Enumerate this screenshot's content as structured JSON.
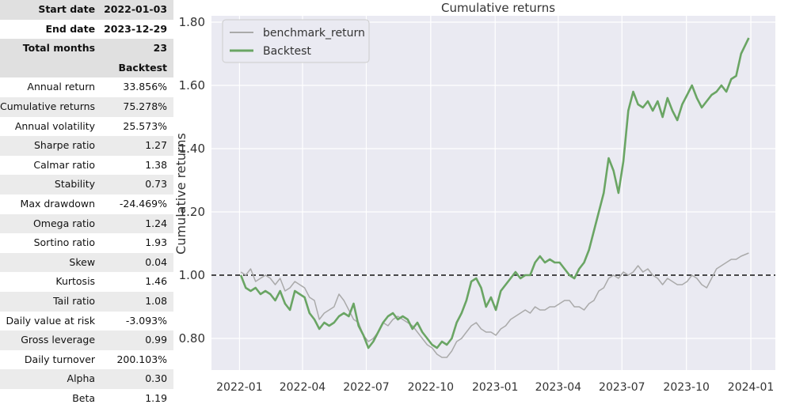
{
  "summary": {
    "rows": [
      {
        "label": "Start date",
        "value": "2022-01-03"
      },
      {
        "label": "End date",
        "value": "2023-12-29"
      },
      {
        "label": "Total months",
        "value": "23"
      }
    ],
    "column_header": "Backtest"
  },
  "metrics": [
    {
      "label": "Annual return",
      "value": "33.856%"
    },
    {
      "label": "Cumulative returns",
      "value": "75.278%"
    },
    {
      "label": "Annual volatility",
      "value": "25.573%"
    },
    {
      "label": "Sharpe ratio",
      "value": "1.27"
    },
    {
      "label": "Calmar ratio",
      "value": "1.38"
    },
    {
      "label": "Stability",
      "value": "0.73"
    },
    {
      "label": "Max drawdown",
      "value": "-24.469%"
    },
    {
      "label": "Omega ratio",
      "value": "1.24"
    },
    {
      "label": "Sortino ratio",
      "value": "1.93"
    },
    {
      "label": "Skew",
      "value": "0.04"
    },
    {
      "label": "Kurtosis",
      "value": "1.46"
    },
    {
      "label": "Tail ratio",
      "value": "1.08"
    },
    {
      "label": "Daily value at risk",
      "value": "-3.093%"
    },
    {
      "label": "Gross leverage",
      "value": "0.99"
    },
    {
      "label": "Daily turnover",
      "value": "200.103%"
    },
    {
      "label": "Alpha",
      "value": "0.30"
    },
    {
      "label": "Beta",
      "value": "1.19"
    }
  ],
  "chart_data": {
    "type": "line",
    "title": "Cumulative returns",
    "ylabel": "Cumulative returns",
    "xlabel": "",
    "x_ticks": [
      "2022-01",
      "2022-04",
      "2022-07",
      "2022-10",
      "2023-01",
      "2023-04",
      "2023-07",
      "2023-10",
      "2024-01"
    ],
    "y_ticks": [
      "0.80",
      "1.00",
      "1.20",
      "1.40",
      "1.60",
      "1.80"
    ],
    "xlim": [
      "2021-11-22",
      "2024-02-05"
    ],
    "ylim": [
      0.7,
      1.82
    ],
    "reference_line": 1.0,
    "grid": true,
    "legend_position": "top-left",
    "background": "#eaeaf2",
    "series": [
      {
        "name": "benchmark_return",
        "color": "#aaaaaa",
        "points": [
          [
            "2022-01-03",
            1.01
          ],
          [
            "2022-01-10",
            1.0
          ],
          [
            "2022-01-17",
            1.02
          ],
          [
            "2022-01-24",
            0.98
          ],
          [
            "2022-01-31",
            0.99
          ],
          [
            "2022-02-07",
            1.0
          ],
          [
            "2022-02-14",
            0.99
          ],
          [
            "2022-02-21",
            0.97
          ],
          [
            "2022-02-28",
            0.99
          ],
          [
            "2022-03-07",
            0.95
          ],
          [
            "2022-03-14",
            0.96
          ],
          [
            "2022-03-21",
            0.98
          ],
          [
            "2022-03-28",
            0.97
          ],
          [
            "2022-04-04",
            0.96
          ],
          [
            "2022-04-11",
            0.93
          ],
          [
            "2022-04-18",
            0.92
          ],
          [
            "2022-04-25",
            0.86
          ],
          [
            "2022-05-02",
            0.88
          ],
          [
            "2022-05-09",
            0.89
          ],
          [
            "2022-05-16",
            0.9
          ],
          [
            "2022-05-23",
            0.94
          ],
          [
            "2022-05-30",
            0.92
          ],
          [
            "2022-06-06",
            0.89
          ],
          [
            "2022-06-13",
            0.86
          ],
          [
            "2022-06-20",
            0.85
          ],
          [
            "2022-06-27",
            0.81
          ],
          [
            "2022-07-04",
            0.79
          ],
          [
            "2022-07-11",
            0.8
          ],
          [
            "2022-07-18",
            0.82
          ],
          [
            "2022-07-25",
            0.85
          ],
          [
            "2022-08-01",
            0.84
          ],
          [
            "2022-08-08",
            0.86
          ],
          [
            "2022-08-15",
            0.87
          ],
          [
            "2022-08-22",
            0.86
          ],
          [
            "2022-08-29",
            0.85
          ],
          [
            "2022-09-05",
            0.84
          ],
          [
            "2022-09-12",
            0.82
          ],
          [
            "2022-09-19",
            0.8
          ],
          [
            "2022-09-26",
            0.78
          ],
          [
            "2022-10-03",
            0.77
          ],
          [
            "2022-10-10",
            0.75
          ],
          [
            "2022-10-17",
            0.74
          ],
          [
            "2022-10-24",
            0.74
          ],
          [
            "2022-10-31",
            0.76
          ],
          [
            "2022-11-07",
            0.79
          ],
          [
            "2022-11-14",
            0.8
          ],
          [
            "2022-11-21",
            0.82
          ],
          [
            "2022-11-28",
            0.84
          ],
          [
            "2022-12-05",
            0.85
          ],
          [
            "2022-12-12",
            0.83
          ],
          [
            "2022-12-19",
            0.82
          ],
          [
            "2022-12-26",
            0.82
          ],
          [
            "2023-01-02",
            0.81
          ],
          [
            "2023-01-09",
            0.83
          ],
          [
            "2023-01-16",
            0.84
          ],
          [
            "2023-01-23",
            0.86
          ],
          [
            "2023-01-30",
            0.87
          ],
          [
            "2023-02-06",
            0.88
          ],
          [
            "2023-02-13",
            0.89
          ],
          [
            "2023-02-20",
            0.88
          ],
          [
            "2023-02-27",
            0.9
          ],
          [
            "2023-03-06",
            0.89
          ],
          [
            "2023-03-13",
            0.89
          ],
          [
            "2023-03-20",
            0.9
          ],
          [
            "2023-03-27",
            0.9
          ],
          [
            "2023-04-03",
            0.91
          ],
          [
            "2023-04-10",
            0.92
          ],
          [
            "2023-04-17",
            0.92
          ],
          [
            "2023-04-24",
            0.9
          ],
          [
            "2023-05-01",
            0.9
          ],
          [
            "2023-05-08",
            0.89
          ],
          [
            "2023-05-15",
            0.91
          ],
          [
            "2023-05-22",
            0.92
          ],
          [
            "2023-05-29",
            0.95
          ],
          [
            "2023-06-05",
            0.96
          ],
          [
            "2023-06-12",
            0.99
          ],
          [
            "2023-06-19",
            1.0
          ],
          [
            "2023-06-26",
            0.99
          ],
          [
            "2023-07-03",
            1.01
          ],
          [
            "2023-07-10",
            1.0
          ],
          [
            "2023-07-17",
            1.01
          ],
          [
            "2023-07-24",
            1.03
          ],
          [
            "2023-07-31",
            1.01
          ],
          [
            "2023-08-07",
            1.02
          ],
          [
            "2023-08-14",
            1.0
          ],
          [
            "2023-08-21",
            0.99
          ],
          [
            "2023-08-28",
            0.97
          ],
          [
            "2023-09-04",
            0.99
          ],
          [
            "2023-09-11",
            0.98
          ],
          [
            "2023-09-18",
            0.97
          ],
          [
            "2023-09-25",
            0.97
          ],
          [
            "2023-10-02",
            0.98
          ],
          [
            "2023-10-09",
            1.0
          ],
          [
            "2023-10-16",
            0.99
          ],
          [
            "2023-10-23",
            0.97
          ],
          [
            "2023-10-30",
            0.96
          ],
          [
            "2023-11-06",
            0.99
          ],
          [
            "2023-11-13",
            1.02
          ],
          [
            "2023-11-20",
            1.03
          ],
          [
            "2023-11-27",
            1.04
          ],
          [
            "2023-12-04",
            1.05
          ],
          [
            "2023-12-11",
            1.05
          ],
          [
            "2023-12-18",
            1.06
          ],
          [
            "2023-12-29",
            1.07
          ]
        ]
      },
      {
        "name": "Backtest",
        "color": "#6aa564",
        "points": [
          [
            "2022-01-03",
            1.0
          ],
          [
            "2022-01-10",
            0.96
          ],
          [
            "2022-01-17",
            0.95
          ],
          [
            "2022-01-24",
            0.96
          ],
          [
            "2022-01-31",
            0.94
          ],
          [
            "2022-02-07",
            0.95
          ],
          [
            "2022-02-14",
            0.94
          ],
          [
            "2022-02-21",
            0.92
          ],
          [
            "2022-02-28",
            0.95
          ],
          [
            "2022-03-07",
            0.91
          ],
          [
            "2022-03-14",
            0.89
          ],
          [
            "2022-03-21",
            0.95
          ],
          [
            "2022-03-28",
            0.94
          ],
          [
            "2022-04-04",
            0.93
          ],
          [
            "2022-04-11",
            0.88
          ],
          [
            "2022-04-18",
            0.86
          ],
          [
            "2022-04-25",
            0.83
          ],
          [
            "2022-05-02",
            0.85
          ],
          [
            "2022-05-09",
            0.84
          ],
          [
            "2022-05-16",
            0.85
          ],
          [
            "2022-05-23",
            0.87
          ],
          [
            "2022-05-30",
            0.88
          ],
          [
            "2022-06-06",
            0.87
          ],
          [
            "2022-06-13",
            0.91
          ],
          [
            "2022-06-20",
            0.84
          ],
          [
            "2022-06-27",
            0.81
          ],
          [
            "2022-07-04",
            0.77
          ],
          [
            "2022-07-11",
            0.79
          ],
          [
            "2022-07-18",
            0.82
          ],
          [
            "2022-07-25",
            0.85
          ],
          [
            "2022-08-01",
            0.87
          ],
          [
            "2022-08-08",
            0.88
          ],
          [
            "2022-08-15",
            0.86
          ],
          [
            "2022-08-22",
            0.87
          ],
          [
            "2022-08-29",
            0.86
          ],
          [
            "2022-09-05",
            0.83
          ],
          [
            "2022-09-12",
            0.85
          ],
          [
            "2022-09-19",
            0.82
          ],
          [
            "2022-09-26",
            0.8
          ],
          [
            "2022-10-03",
            0.78
          ],
          [
            "2022-10-10",
            0.77
          ],
          [
            "2022-10-17",
            0.79
          ],
          [
            "2022-10-24",
            0.78
          ],
          [
            "2022-10-31",
            0.8
          ],
          [
            "2022-11-07",
            0.85
          ],
          [
            "2022-11-14",
            0.88
          ],
          [
            "2022-11-21",
            0.92
          ],
          [
            "2022-11-28",
            0.98
          ],
          [
            "2022-12-05",
            0.99
          ],
          [
            "2022-12-12",
            0.96
          ],
          [
            "2022-12-19",
            0.9
          ],
          [
            "2022-12-26",
            0.93
          ],
          [
            "2023-01-02",
            0.89
          ],
          [
            "2023-01-09",
            0.95
          ],
          [
            "2023-01-16",
            0.97
          ],
          [
            "2023-01-23",
            0.99
          ],
          [
            "2023-01-30",
            1.01
          ],
          [
            "2023-02-06",
            0.99
          ],
          [
            "2023-02-13",
            1.0
          ],
          [
            "2023-02-20",
            1.0
          ],
          [
            "2023-02-27",
            1.04
          ],
          [
            "2023-03-06",
            1.06
          ],
          [
            "2023-03-13",
            1.04
          ],
          [
            "2023-03-20",
            1.05
          ],
          [
            "2023-03-27",
            1.04
          ],
          [
            "2023-04-03",
            1.04
          ],
          [
            "2023-04-10",
            1.02
          ],
          [
            "2023-04-17",
            1.0
          ],
          [
            "2023-04-24",
            0.99
          ],
          [
            "2023-05-01",
            1.02
          ],
          [
            "2023-05-08",
            1.04
          ],
          [
            "2023-05-15",
            1.08
          ],
          [
            "2023-05-22",
            1.14
          ],
          [
            "2023-05-29",
            1.2
          ],
          [
            "2023-06-05",
            1.26
          ],
          [
            "2023-06-12",
            1.37
          ],
          [
            "2023-06-19",
            1.33
          ],
          [
            "2023-06-26",
            1.26
          ],
          [
            "2023-07-03",
            1.36
          ],
          [
            "2023-07-10",
            1.52
          ],
          [
            "2023-07-17",
            1.58
          ],
          [
            "2023-07-24",
            1.54
          ],
          [
            "2023-07-31",
            1.53
          ],
          [
            "2023-08-07",
            1.55
          ],
          [
            "2023-08-14",
            1.52
          ],
          [
            "2023-08-21",
            1.55
          ],
          [
            "2023-08-28",
            1.5
          ],
          [
            "2023-09-04",
            1.56
          ],
          [
            "2023-09-11",
            1.52
          ],
          [
            "2023-09-18",
            1.49
          ],
          [
            "2023-09-25",
            1.54
          ],
          [
            "2023-10-02",
            1.57
          ],
          [
            "2023-10-09",
            1.6
          ],
          [
            "2023-10-16",
            1.56
          ],
          [
            "2023-10-23",
            1.53
          ],
          [
            "2023-10-30",
            1.55
          ],
          [
            "2023-11-06",
            1.57
          ],
          [
            "2023-11-13",
            1.58
          ],
          [
            "2023-11-20",
            1.6
          ],
          [
            "2023-11-27",
            1.58
          ],
          [
            "2023-12-04",
            1.62
          ],
          [
            "2023-12-11",
            1.63
          ],
          [
            "2023-12-18",
            1.7
          ],
          [
            "2023-12-29",
            1.75
          ]
        ]
      }
    ]
  }
}
